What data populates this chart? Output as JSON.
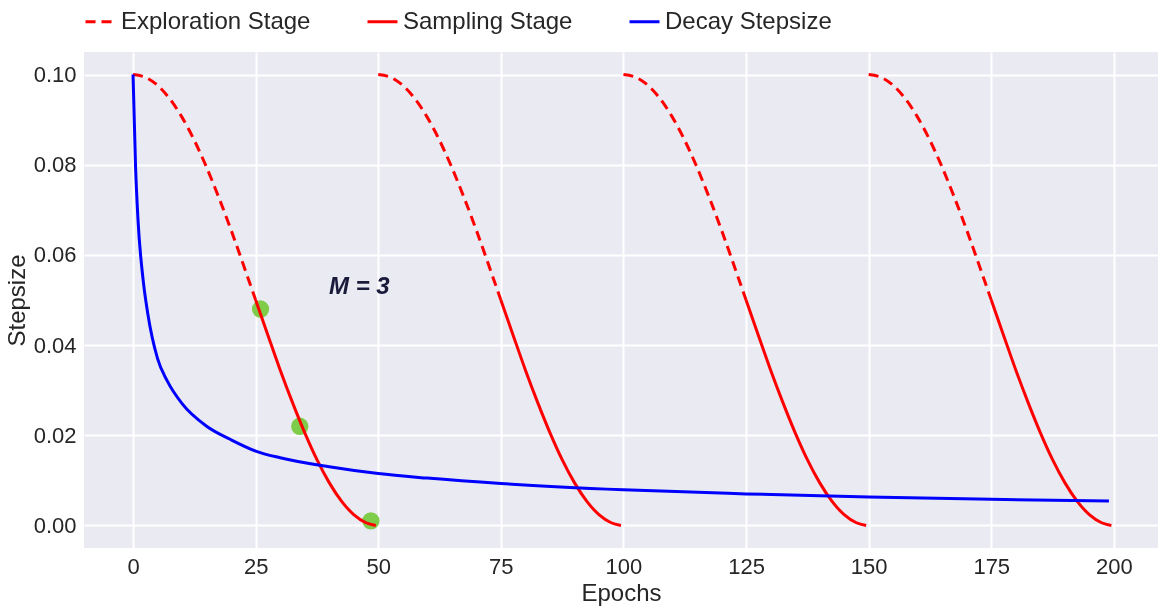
{
  "chart_data": {
    "type": "line",
    "xlabel": "Epochs",
    "ylabel": "Stepsize",
    "xlim": [
      -10,
      209
    ],
    "xticks": [
      0,
      25,
      50,
      75,
      100,
      125,
      150,
      175,
      200
    ],
    "ylim": [
      -0.005,
      0.105
    ],
    "yticks": [
      {
        "value": 0,
        "label": "0.00"
      },
      {
        "value": 0.02,
        "label": "0.02"
      },
      {
        "value": 0.04,
        "label": "0.04"
      },
      {
        "value": 0.06,
        "label": "0.06"
      },
      {
        "value": 0.08,
        "label": "0.08"
      },
      {
        "value": 0.1,
        "label": "0.10"
      }
    ],
    "grid": true,
    "legend": "top",
    "annotations": [
      "M = 3"
    ],
    "series": [
      {
        "name": "Exploration Stage",
        "color": "#ff0000",
        "line_style": "dashed",
        "x": [
          0,
          2.5,
          5,
          7.5,
          10,
          12.5,
          15,
          17.5,
          20,
          22.5,
          25,
          37.5,
          50,
          52.5,
          55,
          57.5,
          60,
          62.5,
          65,
          67.5,
          70,
          72.5,
          75,
          87.5,
          100,
          102.5,
          105,
          107.5,
          110,
          112.5,
          115,
          117.5,
          120,
          122.5,
          125,
          137.5,
          150,
          152.5,
          155,
          157.5,
          160,
          162.5,
          165,
          167.5,
          170,
          172.5,
          175
        ],
        "values": [
          0.1,
          0.0994,
          0.0976,
          0.0946,
          0.0905,
          0.0854,
          0.0794,
          0.0727,
          0.0655,
          0.0578,
          0.05,
          null,
          0.1,
          0.0994,
          0.0976,
          0.0946,
          0.0905,
          0.0854,
          0.0794,
          0.0727,
          0.0655,
          0.0578,
          0.05,
          null,
          0.1,
          0.0994,
          0.0976,
          0.0946,
          0.0905,
          0.0854,
          0.0794,
          0.0727,
          0.0655,
          0.0578,
          0.05,
          null,
          0.1,
          0.0994,
          0.0976,
          0.0946,
          0.0905,
          0.0854,
          0.0794,
          0.0727,
          0.0655,
          0.0578,
          0.05
        ]
      },
      {
        "name": "Sampling Stage",
        "color": "#ff0000",
        "line_style": "solid",
        "x": [
          25,
          27.5,
          30,
          32.5,
          35,
          37.5,
          40,
          42.5,
          45,
          47.5,
          49.5,
          50,
          75,
          77.5,
          80,
          82.5,
          85,
          87.5,
          90,
          92.5,
          95,
          97.5,
          99.5,
          100,
          125,
          127.5,
          130,
          132.5,
          135,
          137.5,
          140,
          142.5,
          145,
          147.5,
          149.5,
          150,
          175,
          177.5,
          180,
          182.5,
          185,
          187.5,
          190,
          192.5,
          195,
          197.5,
          199.5
        ],
        "values": [
          0.05,
          0.0422,
          0.0345,
          0.0273,
          0.0206,
          0.0146,
          0.0095,
          0.0054,
          0.0024,
          0.0006,
          0.0,
          null,
          0.05,
          0.0422,
          0.0345,
          0.0273,
          0.0206,
          0.0146,
          0.0095,
          0.0054,
          0.0024,
          0.0006,
          0.0,
          null,
          0.05,
          0.0422,
          0.0345,
          0.0273,
          0.0206,
          0.0146,
          0.0095,
          0.0054,
          0.0024,
          0.0006,
          0.0,
          null,
          0.05,
          0.0422,
          0.0345,
          0.0273,
          0.0206,
          0.0146,
          0.0095,
          0.0054,
          0.0024,
          0.0006,
          0.0
        ]
      },
      {
        "name": "Decay Stepsize",
        "color": "#0000ff",
        "line_style": "solid",
        "x": [
          0,
          0.5,
          1,
          2,
          3,
          5,
          7,
          10,
          15,
          20,
          25,
          30,
          40,
          50,
          60,
          75,
          100,
          125,
          150,
          175,
          199
        ],
        "values": [
          0.1,
          0.08,
          0.068,
          0.055,
          0.047,
          0.037,
          0.032,
          0.027,
          0.022,
          0.019,
          0.0165,
          0.015,
          0.013,
          0.0115,
          0.0105,
          0.0093,
          0.0079,
          0.007,
          0.0063,
          0.0058,
          0.0054
        ]
      },
      {
        "type": "scatter",
        "color": "#7fcc4a",
        "x": [
          26,
          34,
          48.5
        ],
        "values": [
          0.048,
          0.022,
          0.001
        ]
      }
    ]
  }
}
